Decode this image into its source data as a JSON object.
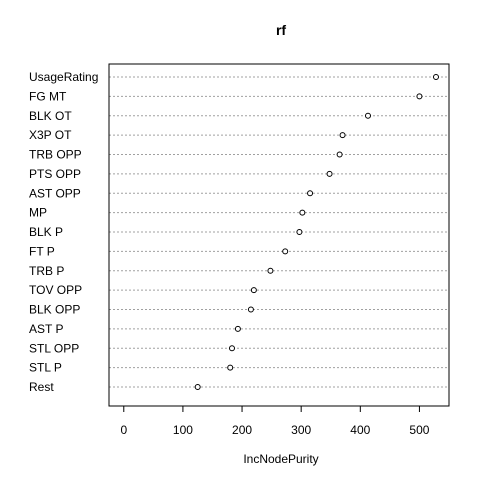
{
  "chart_data": {
    "type": "scatter",
    "title": "rf",
    "xlabel": "IncNodePurity",
    "ylabel": "",
    "xlim": [
      -25,
      550
    ],
    "xticks": [
      0,
      100,
      200,
      300,
      400,
      500
    ],
    "grid": true,
    "categories": [
      "UsageRating",
      "FG MT",
      "BLK OT",
      "X3P OT",
      "TRB OPP",
      "PTS OPP",
      "AST OPP",
      "MP",
      "BLK P",
      "FT P",
      "TRB P",
      "TOV OPP",
      "BLK OPP",
      "AST P",
      "STL OPP",
      "STL P",
      "Rest"
    ],
    "values": [
      528,
      500,
      413,
      370,
      365,
      348,
      315,
      302,
      297,
      273,
      248,
      220,
      215,
      193,
      183,
      180,
      125
    ]
  }
}
